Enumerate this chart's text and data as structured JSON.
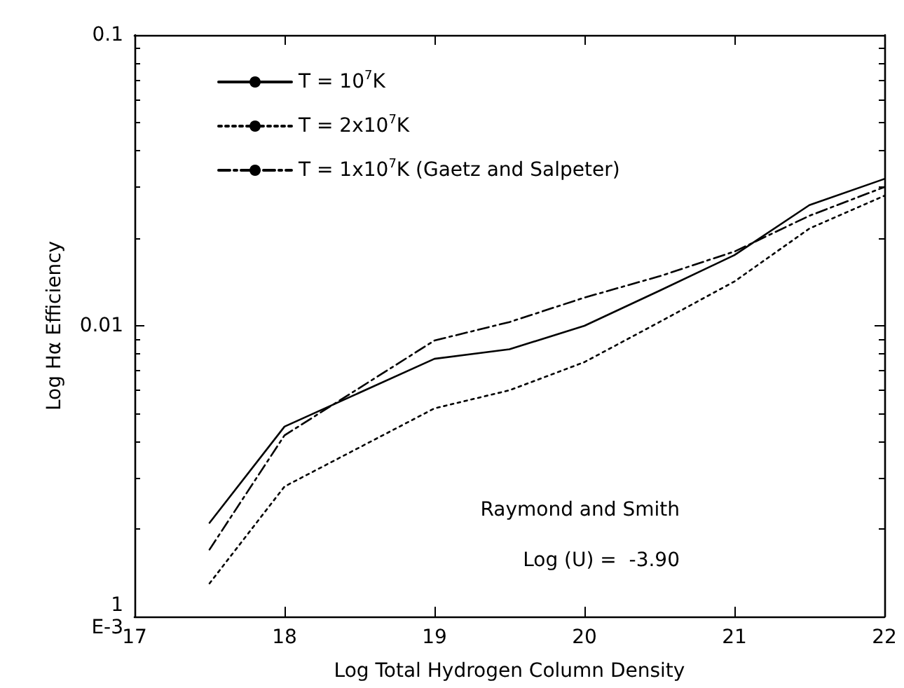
{
  "chart_data": {
    "type": "line",
    "xlabel": "Log Total Hydrogen Column Density",
    "ylabel": "Log Hα Efficiency",
    "x": [
      17.5,
      18,
      19,
      19.5,
      20,
      20.5,
      21,
      21.5,
      22
    ],
    "series": [
      {
        "name": "T = 10$^{7}$K",
        "color": "#000000",
        "line_style": "solid",
        "values": [
          0.0021,
          0.0045,
          0.0077,
          0.0083,
          0.01,
          0.0132,
          0.0175,
          0.026,
          0.032
        ]
      },
      {
        "name": "T = 2x10$^{7}$K",
        "color": "#000000",
        "line_style": "dotted",
        "values": [
          0.0013,
          0.0028,
          0.0052,
          0.006,
          0.0075,
          0.0103,
          0.0142,
          0.0216,
          0.028
        ]
      },
      {
        "name": "T = 1x10$^{7}$K (Gaetz and Salpeter)",
        "color": "#000000",
        "line_style": "dashed",
        "values": [
          0.0017,
          0.0042,
          0.0089,
          0.0103,
          0.0125,
          0.0148,
          0.018,
          0.0239,
          0.03
        ]
      }
    ],
    "xlim": [
      17,
      22
    ],
    "xticks": [
      17,
      18,
      19,
      20,
      21,
      22
    ],
    "ylim": [
      0.001,
      0.1
    ],
    "yticks": [
      {
        "value": 0.001,
        "label": "1\nE-3"
      },
      0.01,
      0.1
    ],
    "log": "y",
    "grid": false,
    "legend": "top left",
    "marker": "none",
    "annotations": [
      "Raymond and Smith",
      "Log (U) =  -3.90"
    ]
  }
}
